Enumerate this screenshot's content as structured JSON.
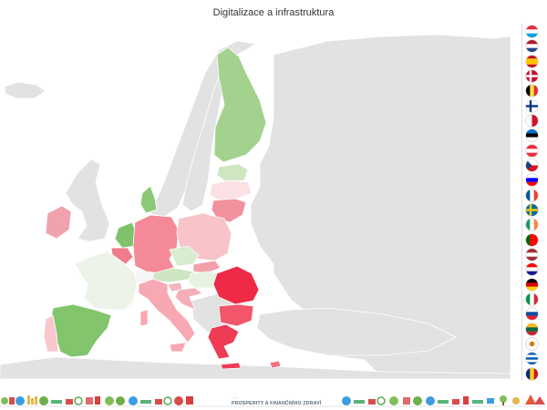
{
  "title": "Digitalizace a infrastruktura",
  "colors": {
    "land_other": "#e2e2e2",
    "sea": "#ffffff",
    "border": "#ffffff",
    "scale_best": "#7ec36a",
    "scale_mid": "#eef3ea",
    "scale_worst": "#ee2a46"
  },
  "countries": [
    {
      "name": "Finland",
      "shade": "#a3d28e"
    },
    {
      "name": "Sweden",
      "shade": "#ffffff"
    },
    {
      "name": "Norway",
      "shade": "#ffffff"
    },
    {
      "name": "Estonia",
      "shade": "#cfe6c2"
    },
    {
      "name": "Latvia",
      "shade": "#fbe1e4"
    },
    {
      "name": "Lithuania",
      "shade": "#f2929f"
    },
    {
      "name": "Denmark",
      "shade": "#8cc977"
    },
    {
      "name": "Ireland",
      "shade": "#f0a2ad"
    },
    {
      "name": "Netherlands",
      "shade": "#7ec36a"
    },
    {
      "name": "Belgium",
      "shade": "#f07d8c"
    },
    {
      "name": "Luxembourg",
      "shade": "#ffffff"
    },
    {
      "name": "Germany",
      "shade": "#f48a98"
    },
    {
      "name": "Poland",
      "shade": "#f8c3c9"
    },
    {
      "name": "Czechia",
      "shade": "#d8ecd0"
    },
    {
      "name": "Slovakia",
      "shade": "#f3a0ab"
    },
    {
      "name": "Austria",
      "shade": "#cde5c2"
    },
    {
      "name": "Hungary",
      "shade": "#e7f2e0"
    },
    {
      "name": "France",
      "shade": "#eef3ea"
    },
    {
      "name": "Switzerland",
      "shade": "#ffffff"
    },
    {
      "name": "Slovenia",
      "shade": "#f2b6be"
    },
    {
      "name": "Croatia",
      "shade": "#f5aeb8"
    },
    {
      "name": "Italy",
      "shade": "#f7a8b2"
    },
    {
      "name": "Spain",
      "shade": "#82c56c"
    },
    {
      "name": "Portugal",
      "shade": "#f8c7cd"
    },
    {
      "name": "Romania",
      "shade": "#ee2a46"
    },
    {
      "name": "Bulgaria",
      "shade": "#f2566a"
    },
    {
      "name": "Greece",
      "shade": "#ef3c55"
    },
    {
      "name": "Cyprus",
      "shade": "#f6707f"
    }
  ],
  "legend_flags": [
    "Luxembourg",
    "Netherlands",
    "Spain",
    "Denmark",
    "Belgium",
    "Finland",
    "Malta",
    "Estonia",
    "Austria",
    "Czechia",
    "Slovenia",
    "France",
    "Sweden",
    "Ireland",
    "Portugal",
    "Latvia",
    "Croatia",
    "Germany",
    "Italy",
    "Slovakia",
    "Lithuania",
    "Cyprus",
    "Greece",
    "Romania"
  ],
  "footer": {
    "brand_top": "·····",
    "brand_main": "PROSPERITY A FINANČNÍHO ZDRAVÍ"
  }
}
